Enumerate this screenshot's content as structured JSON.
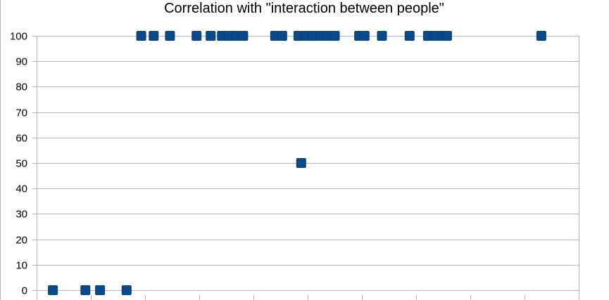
{
  "chart_data": {
    "type": "scatter",
    "title": "Correlation with \"interaction between people\"",
    "xlabel": "",
    "ylabel": "",
    "ylim": [
      0,
      100
    ],
    "yticks": [
      0,
      10,
      20,
      30,
      40,
      50,
      60,
      70,
      80,
      90,
      100
    ],
    "xlim": [
      0,
      10
    ],
    "xticks_labeled": false,
    "grid": "horizontal",
    "legend": "none",
    "marker": "square",
    "colors": {
      "marker": "#0a4a8a",
      "marker_edge": "#0b3d73",
      "grid": "#b3b3b3",
      "frame": "#b3b3b3"
    },
    "series": [
      {
        "values": [
          {
            "x": 0.3,
            "y": 0
          },
          {
            "x": 0.9,
            "y": 0
          },
          {
            "x": 1.17,
            "y": 0
          },
          {
            "x": 1.66,
            "y": 0
          },
          {
            "x": 1.93,
            "y": 100
          },
          {
            "x": 2.16,
            "y": 100
          },
          {
            "x": 2.46,
            "y": 100
          },
          {
            "x": 2.95,
            "y": 100
          },
          {
            "x": 3.21,
            "y": 100
          },
          {
            "x": 3.42,
            "y": 100
          },
          {
            "x": 3.55,
            "y": 100
          },
          {
            "x": 3.68,
            "y": 100
          },
          {
            "x": 3.81,
            "y": 100
          },
          {
            "x": 4.4,
            "y": 100
          },
          {
            "x": 4.53,
            "y": 100
          },
          {
            "x": 4.83,
            "y": 100
          },
          {
            "x": 4.97,
            "y": 100
          },
          {
            "x": 4.88,
            "y": 50
          },
          {
            "x": 5.09,
            "y": 100
          },
          {
            "x": 5.23,
            "y": 100
          },
          {
            "x": 5.36,
            "y": 100
          },
          {
            "x": 5.5,
            "y": 100
          },
          {
            "x": 5.95,
            "y": 100
          },
          {
            "x": 6.05,
            "y": 100
          },
          {
            "x": 6.37,
            "y": 100
          },
          {
            "x": 6.88,
            "y": 100
          },
          {
            "x": 7.22,
            "y": 100
          },
          {
            "x": 7.35,
            "y": 100
          },
          {
            "x": 7.48,
            "y": 100
          },
          {
            "x": 7.57,
            "y": 100
          },
          {
            "x": 9.31,
            "y": 100
          }
        ]
      }
    ]
  }
}
